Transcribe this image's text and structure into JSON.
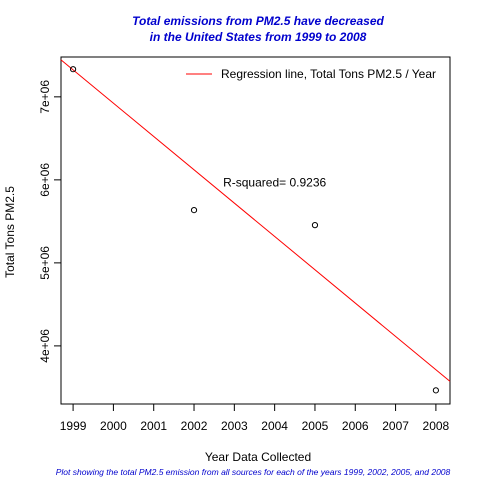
{
  "chart_data": {
    "type": "scatter",
    "title_line1": "Total emissions from PM2.5 have decreased",
    "title_line2": "in the United States from 1999 to 2008",
    "caption": "Plot showing the total PM2.5 emission from all sources for each of the years 1999, 2002, 2005, and 2008",
    "xlabel": "Year Data Collected",
    "ylabel": "Total Tons PM2.5",
    "xlim": [
      1998.7,
      2008.35
    ],
    "ylim": [
      3300000,
      7480000
    ],
    "x_ticks": [
      1999,
      2000,
      2001,
      2002,
      2003,
      2004,
      2005,
      2006,
      2007,
      2008
    ],
    "x_tick_labels": [
      "1999",
      "2000",
      "2001",
      "2002",
      "2003",
      "2004",
      "2005",
      "2006",
      "2007",
      "2008"
    ],
    "y_ticks": [
      4000000,
      5000000,
      6000000,
      7000000
    ],
    "y_tick_labels": [
      "4e+06",
      "5e+06",
      "6e+06",
      "7e+06"
    ],
    "points": [
      {
        "x": 1999,
        "y": 7332967
      },
      {
        "x": 2002,
        "y": 5635780
      },
      {
        "x": 2005,
        "y": 5454703
      },
      {
        "x": 2008,
        "y": 3464206
      }
    ],
    "regression": {
      "slope": -401370,
      "intercept": 809664000
    },
    "legend": {
      "label": "Regression line, Total Tons PM2.5 / Year",
      "color": "#ff0000",
      "position": "top-right"
    },
    "annotation": {
      "text": "R-squared= 0.9236",
      "x": 2004,
      "y": 5970000
    },
    "colors": {
      "regression": "#ff0000",
      "points": "#000000",
      "title": "#0000cd"
    }
  }
}
